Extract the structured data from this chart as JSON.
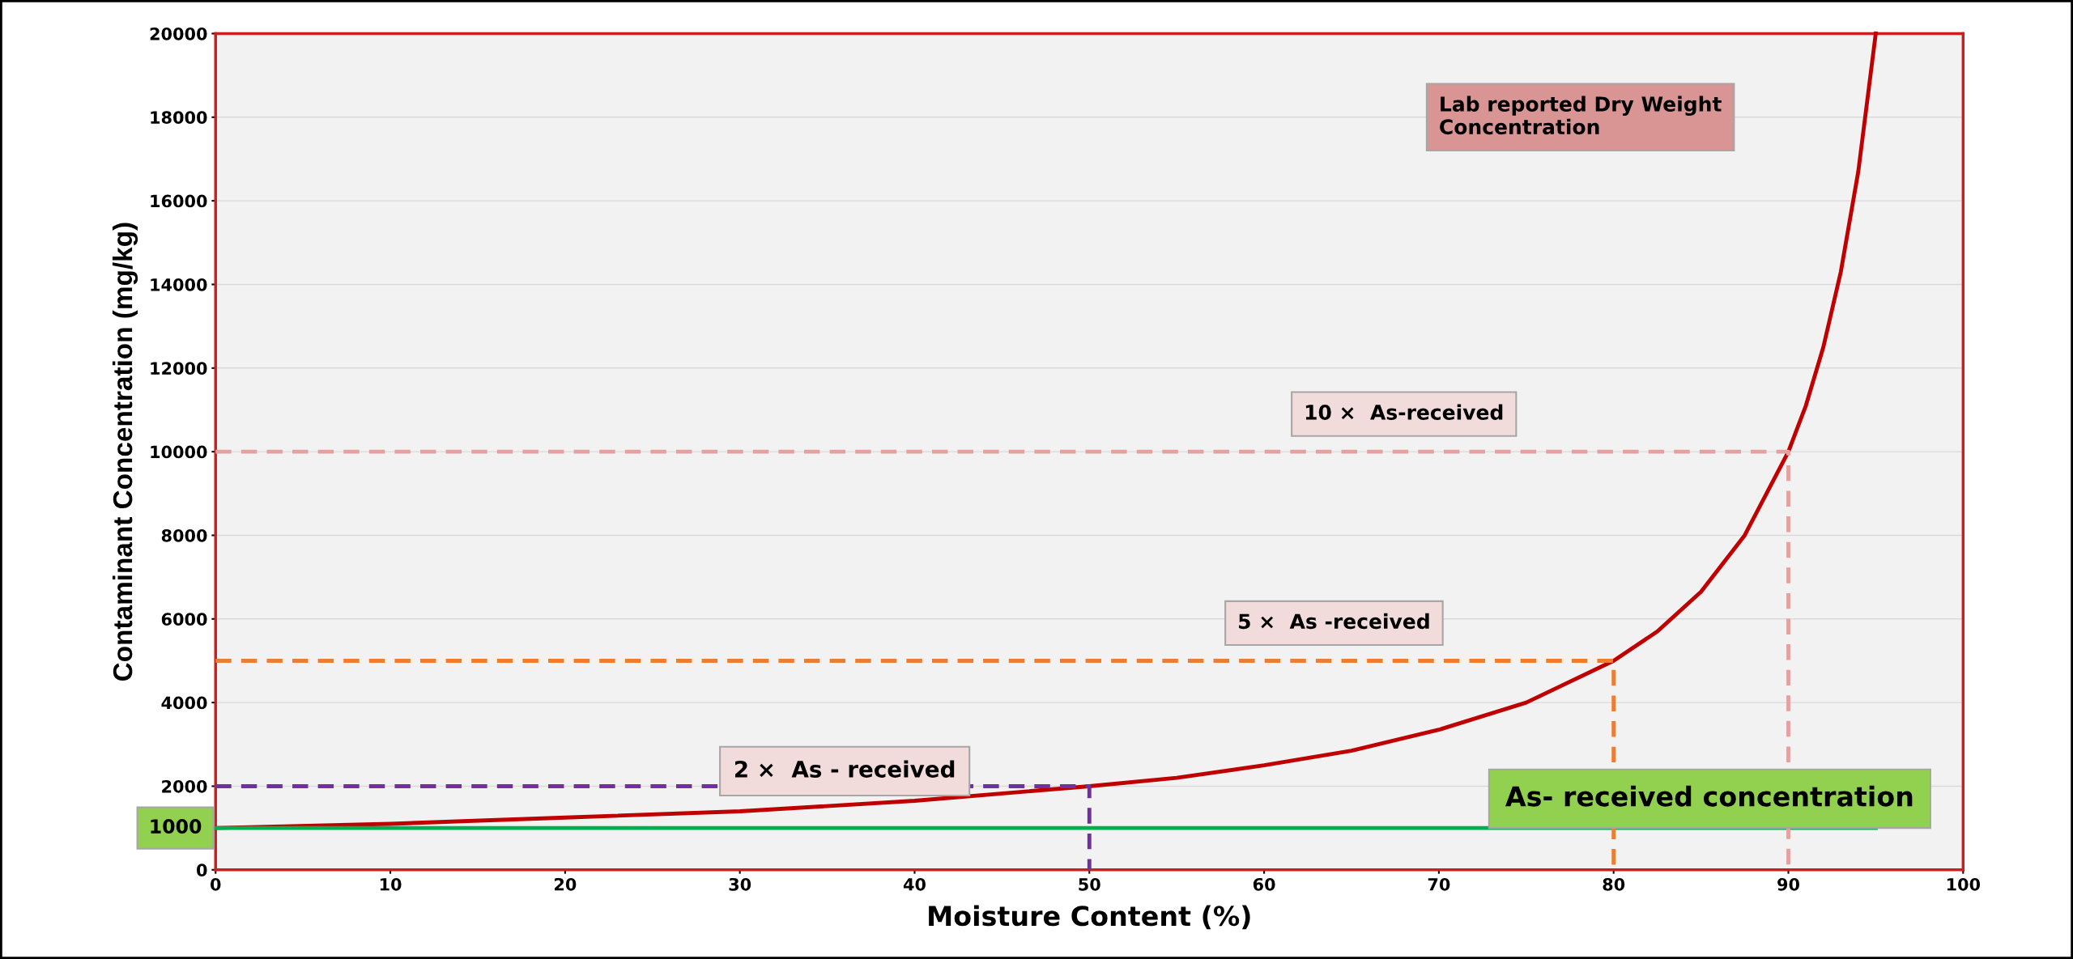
{
  "chart_data": {
    "type": "line",
    "xlabel": "Moisture Content (%)",
    "ylabel": "Contaminant Concentration (mg/kg)",
    "xlim": [
      0,
      100
    ],
    "xticks": [
      0,
      10,
      20,
      30,
      40,
      50,
      60,
      70,
      80,
      90,
      100
    ],
    "ylim": [
      0,
      20000
    ],
    "yticks": [
      0,
      2000,
      4000,
      6000,
      8000,
      10000,
      12000,
      14000,
      16000,
      18000,
      20000
    ],
    "grid": "y",
    "legend": false,
    "marker": "none",
    "series": [
      {
        "color": "#c00000",
        "x": [
          0,
          10,
          20,
          30,
          40,
          50,
          55,
          60,
          65,
          70,
          75,
          80,
          82.5,
          85,
          87.5,
          90,
          91,
          92,
          93,
          94,
          95
        ],
        "values": [
          1000,
          1100,
          1250,
          1400,
          1650,
          2000,
          2200,
          2500,
          2850,
          3350,
          4000,
          5000,
          5700,
          6650,
          8000,
          10000,
          11100,
          12500,
          14300,
          16700,
          20000
        ]
      },
      {
        "color": "#00b050",
        "x": [
          0,
          95
        ],
        "values": [
          1000,
          1000
        ]
      },
      {
        "color": "#7030a0",
        "line_style": "dashed",
        "x": [
          0,
          50,
          50
        ],
        "values": [
          2000,
          2000,
          0
        ]
      },
      {
        "color": "#ed7d31",
        "line_style": "dashed",
        "x": [
          0,
          80,
          80
        ],
        "values": [
          5000,
          5000,
          0
        ]
      },
      {
        "color": "#e6a0a0",
        "line_style": "dashed",
        "x": [
          0,
          90,
          90
        ],
        "values": [
          10000,
          10000,
          0
        ]
      }
    ],
    "annotations": [
      "Lab reported Dry Weight\nConcentration",
      "10 ×  As-received",
      "5 ×  As -received",
      "2 ×  As - received",
      "As- received concentration",
      "1000"
    ]
  }
}
